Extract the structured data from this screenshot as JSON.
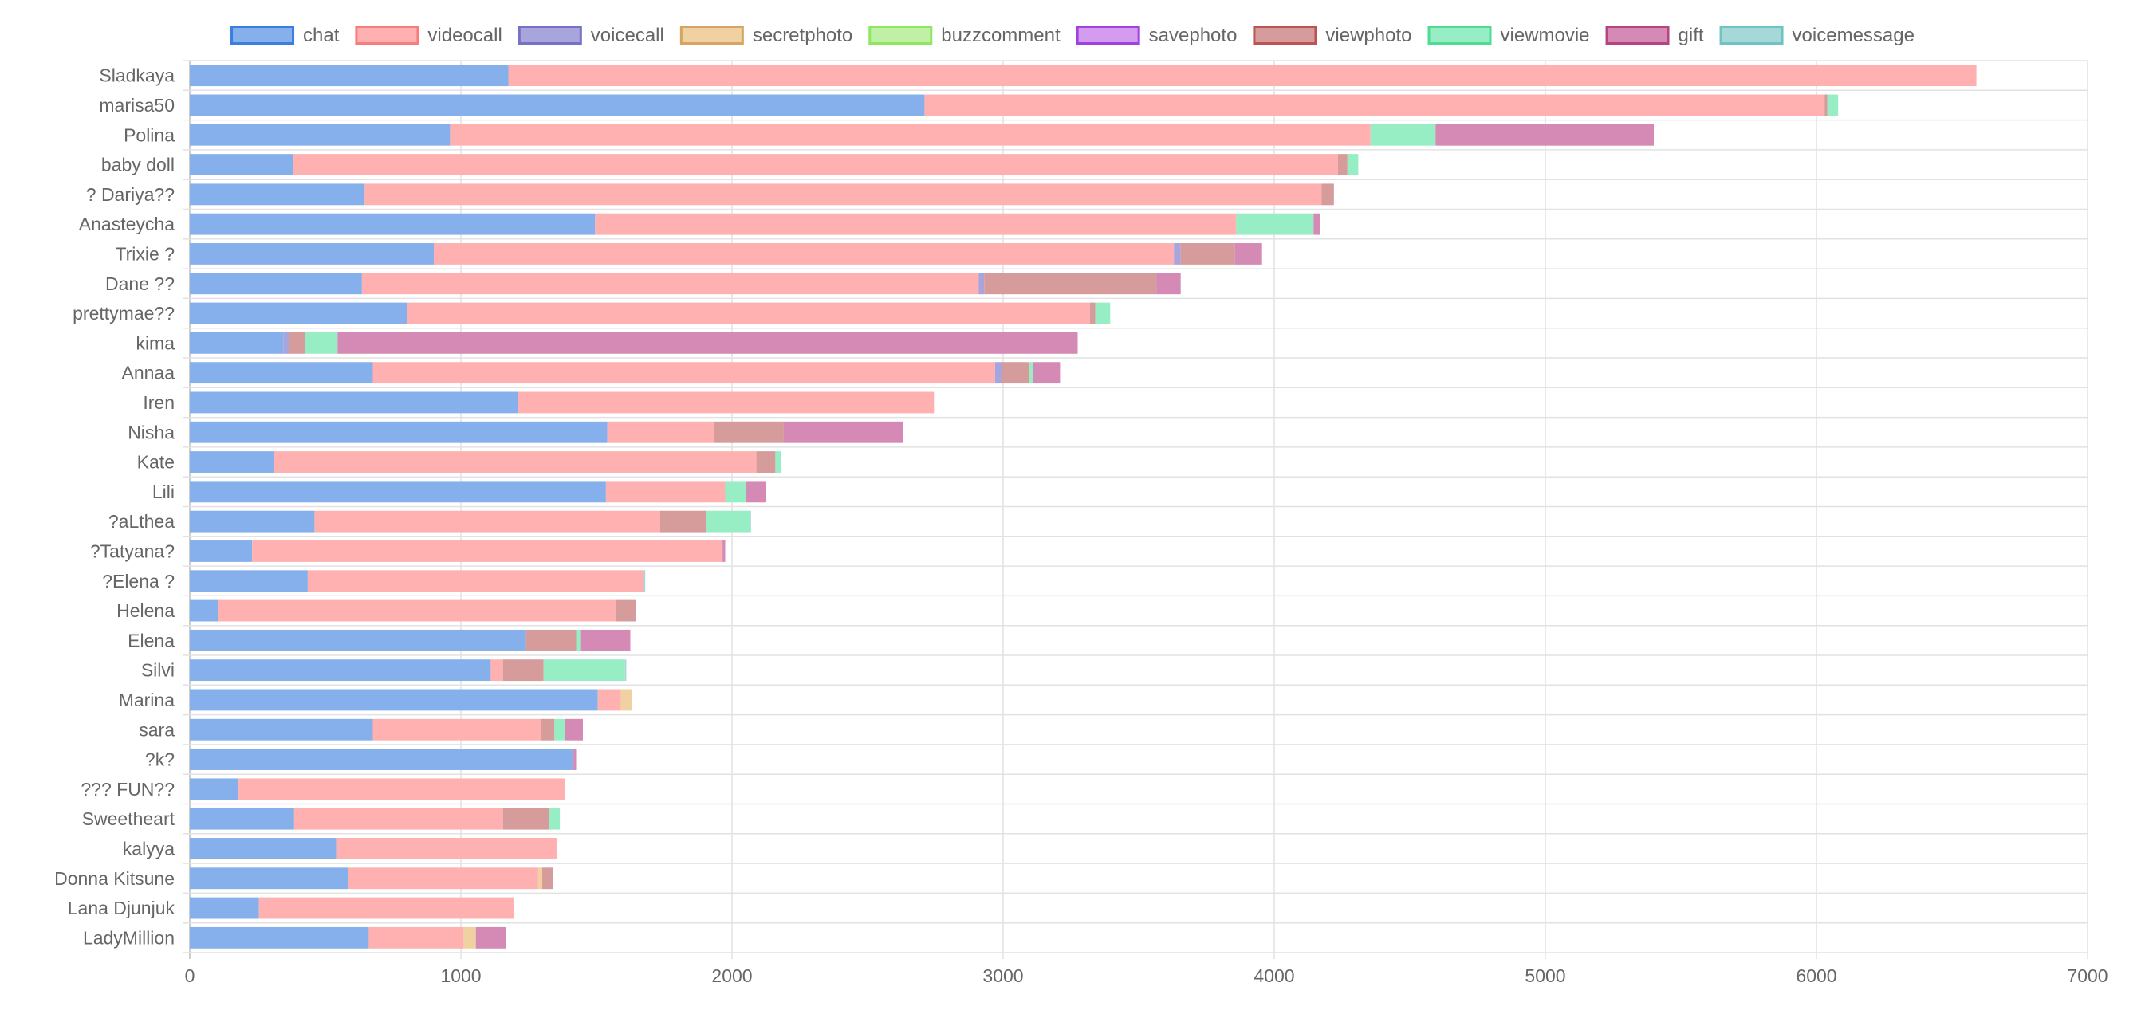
{
  "chart_data": {
    "type": "bar",
    "orientation": "horizontal",
    "stacked": true,
    "legend_position": "top",
    "grid": true,
    "xlim": [
      0,
      7000
    ],
    "x_ticks": [
      "0",
      "1000",
      "2000",
      "3000",
      "4000",
      "5000",
      "6000",
      "7000"
    ],
    "categories": [
      "Sladkaya",
      "marisa50",
      "Polina",
      "baby doll",
      "? Dariya??",
      "Anasteycha",
      "Trixie ?",
      "Dane ??",
      "prettymae??",
      "kima",
      "Annaa",
      "Iren",
      "Nisha",
      "Kate",
      "Lili",
      "?aLthea",
      "?Tatyana?",
      "?Elena ?",
      "Helena",
      "Elena",
      "Silvi",
      "Marina",
      "sara",
      "?k?",
      "??? FUN??",
      "Sweetheart",
      "kalyya",
      "Donna Kitsune",
      "Lana Djunjuk",
      "LadyMillion"
    ],
    "series": [
      {
        "name": "chat",
        "fill": "#85b0ec",
        "border": "#3a7fe0",
        "values": [
          1175,
          2710,
          960,
          380,
          645,
          1495,
          900,
          635,
          800,
          345,
          675,
          1210,
          1540,
          310,
          1535,
          460,
          230,
          435,
          105,
          1240,
          1110,
          1505,
          675,
          1415,
          180,
          385,
          540,
          585,
          255,
          660
        ]
      },
      {
        "name": "videocall",
        "fill": "#ffb1b1",
        "border": "#f77c7c",
        "values": [
          5415,
          3320,
          3395,
          3855,
          3530,
          2365,
          2730,
          2275,
          2520,
          0,
          2295,
          1535,
          395,
          1780,
          440,
          1275,
          1735,
          1240,
          1465,
          0,
          45,
          85,
          620,
          0,
          1205,
          770,
          815,
          700,
          940,
          350
        ]
      },
      {
        "name": "voicecall",
        "fill": "#a7a5dc",
        "border": "#7670c8",
        "values": [
          0,
          0,
          0,
          0,
          0,
          0,
          25,
          20,
          0,
          20,
          25,
          0,
          0,
          0,
          0,
          0,
          0,
          0,
          0,
          0,
          0,
          0,
          0,
          0,
          0,
          0,
          0,
          0,
          0,
          0
        ]
      },
      {
        "name": "secretphoto",
        "fill": "#f0d2a2",
        "border": "#d6a563",
        "values": [
          0,
          0,
          0,
          0,
          0,
          0,
          0,
          0,
          0,
          0,
          0,
          0,
          0,
          0,
          0,
          0,
          0,
          0,
          0,
          0,
          0,
          40,
          0,
          0,
          0,
          0,
          0,
          15,
          0,
          45
        ]
      },
      {
        "name": "buzzcomment",
        "fill": "#bff0a6",
        "border": "#8fe65f",
        "values": [
          0,
          0,
          0,
          0,
          0,
          0,
          0,
          0,
          0,
          0,
          0,
          0,
          0,
          0,
          0,
          0,
          0,
          0,
          0,
          0,
          0,
          0,
          0,
          0,
          0,
          0,
          0,
          0,
          0,
          0
        ]
      },
      {
        "name": "savephoto",
        "fill": "#d39cf0",
        "border": "#a241e0",
        "values": [
          0,
          0,
          0,
          0,
          0,
          0,
          0,
          0,
          0,
          0,
          0,
          0,
          0,
          0,
          0,
          0,
          0,
          0,
          0,
          0,
          0,
          0,
          0,
          0,
          0,
          0,
          0,
          0,
          0,
          0
        ]
      },
      {
        "name": "viewphoto",
        "fill": "#d69b9b",
        "border": "#bb5454",
        "values": [
          0,
          10,
          0,
          35,
          45,
          0,
          200,
          635,
          20,
          60,
          100,
          0,
          255,
          70,
          0,
          170,
          0,
          0,
          75,
          185,
          150,
          0,
          50,
          0,
          0,
          170,
          0,
          40,
          0,
          0
        ]
      },
      {
        "name": "viewmovie",
        "fill": "#98eec4",
        "border": "#4fdb93",
        "values": [
          0,
          40,
          240,
          40,
          0,
          285,
          0,
          0,
          55,
          120,
          15,
          0,
          0,
          20,
          75,
          160,
          0,
          0,
          0,
          15,
          300,
          0,
          40,
          0,
          0,
          40,
          0,
          0,
          0,
          0
        ]
      },
      {
        "name": "gift",
        "fill": "#d58ab5",
        "border": "#b44580",
        "values": [
          0,
          0,
          805,
          0,
          0,
          25,
          100,
          90,
          0,
          2730,
          100,
          0,
          440,
          0,
          75,
          0,
          10,
          0,
          0,
          185,
          0,
          0,
          65,
          10,
          0,
          0,
          0,
          0,
          0,
          110
        ]
      },
      {
        "name": "voicemessage",
        "fill": "#a7d8d8",
        "border": "#6ec3c3",
        "values": [
          0,
          0,
          0,
          0,
          0,
          0,
          0,
          0,
          0,
          0,
          0,
          0,
          0,
          0,
          0,
          5,
          0,
          5,
          0,
          0,
          5,
          0,
          0,
          0,
          0,
          0,
          0,
          0,
          0,
          0
        ]
      }
    ]
  }
}
